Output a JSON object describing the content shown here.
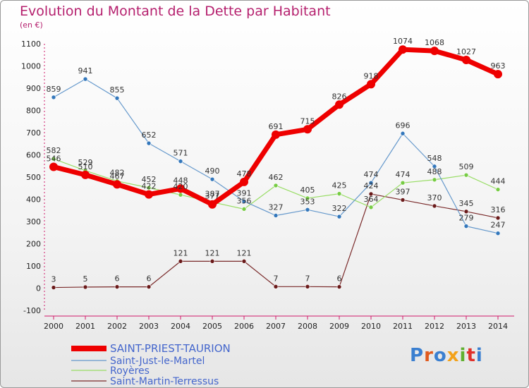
{
  "title": "Evolution du Montant de la Dette par Habitant",
  "subtitle": "(en €)",
  "logo": {
    "text": "Proxiti",
    "colors": [
      "#3a7fd0",
      "#e05a1e",
      "#3a7fd0",
      "#f3a21a",
      "#60b030",
      "#e0302a",
      "#3a7fd0"
    ]
  },
  "chart_data": {
    "type": "line",
    "x": [
      "2000",
      "2001",
      "2002",
      "2003",
      "2004",
      "2005",
      "2006",
      "2007",
      "2008",
      "2009",
      "2010",
      "2011",
      "2012",
      "2013",
      "2014"
    ],
    "ylim": [
      -100,
      1100
    ],
    "yticks": [
      -100,
      0,
      100,
      200,
      300,
      400,
      500,
      600,
      700,
      800,
      900,
      1000,
      1100
    ],
    "grid": false,
    "legend_position": "bottom-left",
    "series": [
      {
        "name": "SAINT-PRIEST-TAURION",
        "color": "#ee0000",
        "marker": "#ee0000",
        "values": [
          546,
          510,
          467,
          422,
          448,
          377,
          478,
          691,
          715,
          826,
          918,
          1074,
          1068,
          1027,
          963
        ],
        "labels": [
          "546",
          "510",
          "467",
          "422",
          "448",
          "377",
          "478",
          "691",
          "715",
          "826",
          "918",
          "1074",
          "1068",
          "1027",
          "963"
        ]
      },
      {
        "name": "Saint-Just-le-Martel",
        "color": "#6699cc",
        "marker": "#3377bb",
        "values": [
          859,
          941,
          855,
          652,
          571,
          490,
          391,
          327,
          353,
          322,
          474,
          696,
          548,
          279,
          247
        ],
        "labels": [
          "859",
          "941",
          "855",
          "652",
          "571",
          "490",
          "391",
          "327",
          "353",
          "322",
          "474",
          "696",
          "548",
          "279",
          "247"
        ]
      },
      {
        "name": "Royères",
        "color": "#99dd66",
        "marker": "#77cc44",
        "values": [
          582,
          529,
          482,
          452,
          420,
          387,
          356,
          462,
          405,
          425,
          364,
          474,
          488,
          509,
          444
        ],
        "labels": [
          "582",
          "529",
          "482",
          "452",
          "420",
          "387",
          "356",
          "462",
          "405",
          "425",
          "364",
          "474",
          "488",
          "509",
          "444"
        ]
      },
      {
        "name": "Saint-Martin-Terressus",
        "color": "#7a2a2a",
        "marker": "#6a1a1a",
        "values": [
          3,
          5,
          6,
          6,
          121,
          121,
          121,
          7,
          7,
          6,
          424,
          397,
          370,
          345,
          316
        ],
        "labels": [
          "3",
          "5",
          "6",
          "6",
          "121",
          "121",
          "121",
          "7",
          "7",
          "6",
          "424",
          "397",
          "370",
          "345",
          "316"
        ]
      }
    ]
  }
}
